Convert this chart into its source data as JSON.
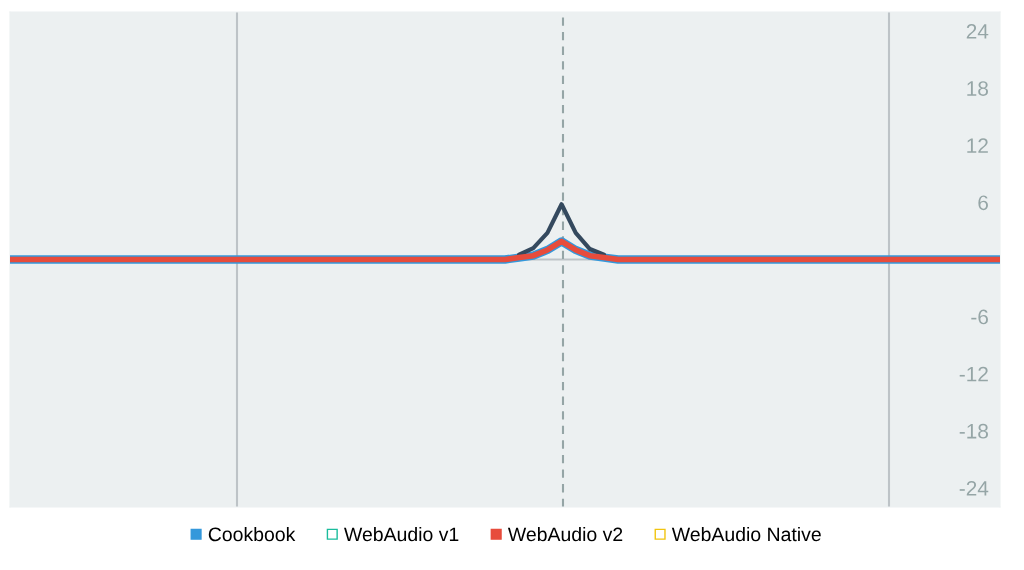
{
  "chart_data": {
    "type": "line",
    "categories": [
      null,
      null,
      null,
      null,
      null,
      null,
      null,
      null,
      null,
      null,
      null,
      null,
      null,
      null,
      null,
      null,
      null,
      null,
      null,
      null,
      null,
      null,
      null,
      null,
      null,
      null,
      null,
      null,
      null,
      null,
      null,
      null,
      null,
      null,
      null,
      null,
      null,
      null,
      null,
      null,
      null,
      null,
      null,
      null,
      null,
      null,
      null,
      null,
      null,
      null,
      null,
      null,
      null,
      null,
      null,
      null,
      null,
      null,
      null,
      null,
      null,
      null,
      null,
      null,
      null,
      null,
      null,
      null,
      null,
      null,
      null
    ],
    "ylim": [
      -26,
      26
    ],
    "yticks": [
      -24,
      -18,
      -12,
      -6,
      6,
      12,
      18,
      24
    ],
    "tick_labels": "y",
    "legend": "bottom",
    "marker": "none",
    "line_style": "solid",
    "ref_lines": [
      {
        "axis": "y",
        "value": 0,
        "label": null,
        "color": "#bdc3c7",
        "line_style": "solid"
      }
    ],
    "series": [
      {
        "name": "Cookbook",
        "color": "#3498db",
        "values": [
          0,
          0,
          0,
          0,
          0,
          0,
          0,
          0,
          0,
          0,
          0,
          0,
          0,
          0,
          0,
          0,
          0,
          0,
          0,
          0,
          0,
          0,
          0,
          0,
          0,
          0,
          0,
          0,
          0,
          0,
          0,
          0,
          0,
          0,
          0,
          0,
          0.2,
          0.4,
          1.0,
          1.9,
          1.0,
          0.4,
          0.2,
          0,
          0,
          0,
          0,
          0,
          0,
          0,
          0,
          0,
          0,
          0,
          0,
          0,
          0,
          0,
          0,
          0,
          0,
          0,
          0,
          0,
          0,
          0,
          0,
          0,
          0,
          0,
          0
        ]
      },
      {
        "color": "#34495e",
        "values": [
          null,
          null,
          null,
          null,
          null,
          null,
          null,
          null,
          null,
          null,
          null,
          null,
          null,
          null,
          null,
          null,
          null,
          null,
          null,
          null,
          null,
          null,
          null,
          null,
          null,
          null,
          null,
          null,
          null,
          null,
          null,
          null,
          null,
          null,
          null,
          null,
          0.5,
          1.2,
          2.8,
          5.8,
          2.8,
          1.1,
          0.5,
          null,
          null,
          null,
          null,
          null,
          null,
          null,
          null,
          null,
          null,
          null,
          null,
          null,
          null,
          null,
          null,
          null,
          null,
          null,
          null,
          null,
          null,
          null,
          null,
          null,
          null,
          null,
          null
        ]
      },
      {
        "name": "WebAudio v1",
        "color": "#1abc9c",
        "values": [
          null,
          null,
          null,
          null,
          null,
          null,
          null,
          null,
          null,
          null,
          null,
          null,
          null,
          null,
          null,
          null,
          null,
          null,
          null,
          null,
          null,
          null,
          null,
          null,
          null,
          null,
          null,
          null,
          null,
          null,
          null,
          null,
          null,
          null,
          null,
          null,
          null,
          null,
          null,
          null,
          null,
          null,
          null,
          null,
          null,
          null,
          null,
          null,
          null,
          null,
          null,
          null,
          null,
          null,
          null,
          null,
          null,
          null,
          null,
          null,
          null,
          null,
          null,
          null,
          null,
          null,
          null,
          null,
          null,
          null,
          null
        ]
      },
      {
        "name": "WebAudio v2",
        "color": "#e74c3c",
        "values": [
          0,
          0,
          0,
          0,
          0,
          0,
          0,
          0,
          0,
          0,
          0,
          0,
          0,
          0,
          0,
          0,
          0,
          0,
          0,
          0,
          0,
          0,
          0,
          0,
          0,
          0,
          0,
          0,
          0,
          0,
          0,
          0,
          0,
          0,
          0,
          0,
          0.2,
          0.4,
          1.0,
          1.9,
          1.0,
          0.4,
          0.2,
          0,
          0,
          0,
          0,
          0,
          0,
          0,
          0,
          0,
          0,
          0,
          0,
          0,
          0,
          0,
          0,
          0,
          0,
          0,
          0,
          0,
          0,
          0,
          0,
          0,
          0,
          0,
          0
        ]
      },
      {
        "name": "WebAudio Native",
        "color": "#f1c40f",
        "values": [
          null,
          null,
          null,
          null,
          null,
          null,
          null,
          null,
          null,
          null,
          null,
          null,
          null,
          null,
          null,
          null,
          null,
          null,
          null,
          null,
          null,
          null,
          null,
          null,
          null,
          null,
          null,
          null,
          null,
          null,
          null,
          null,
          null,
          null,
          null,
          null,
          null,
          null,
          null,
          null,
          null,
          null,
          null,
          null,
          null,
          null,
          null,
          null,
          null,
          null,
          null,
          null,
          null,
          null,
          null,
          null,
          null,
          null,
          null,
          null,
          null,
          null,
          null,
          null,
          null,
          null,
          null,
          null,
          null,
          null,
          null
        ]
      }
    ]
  }
}
